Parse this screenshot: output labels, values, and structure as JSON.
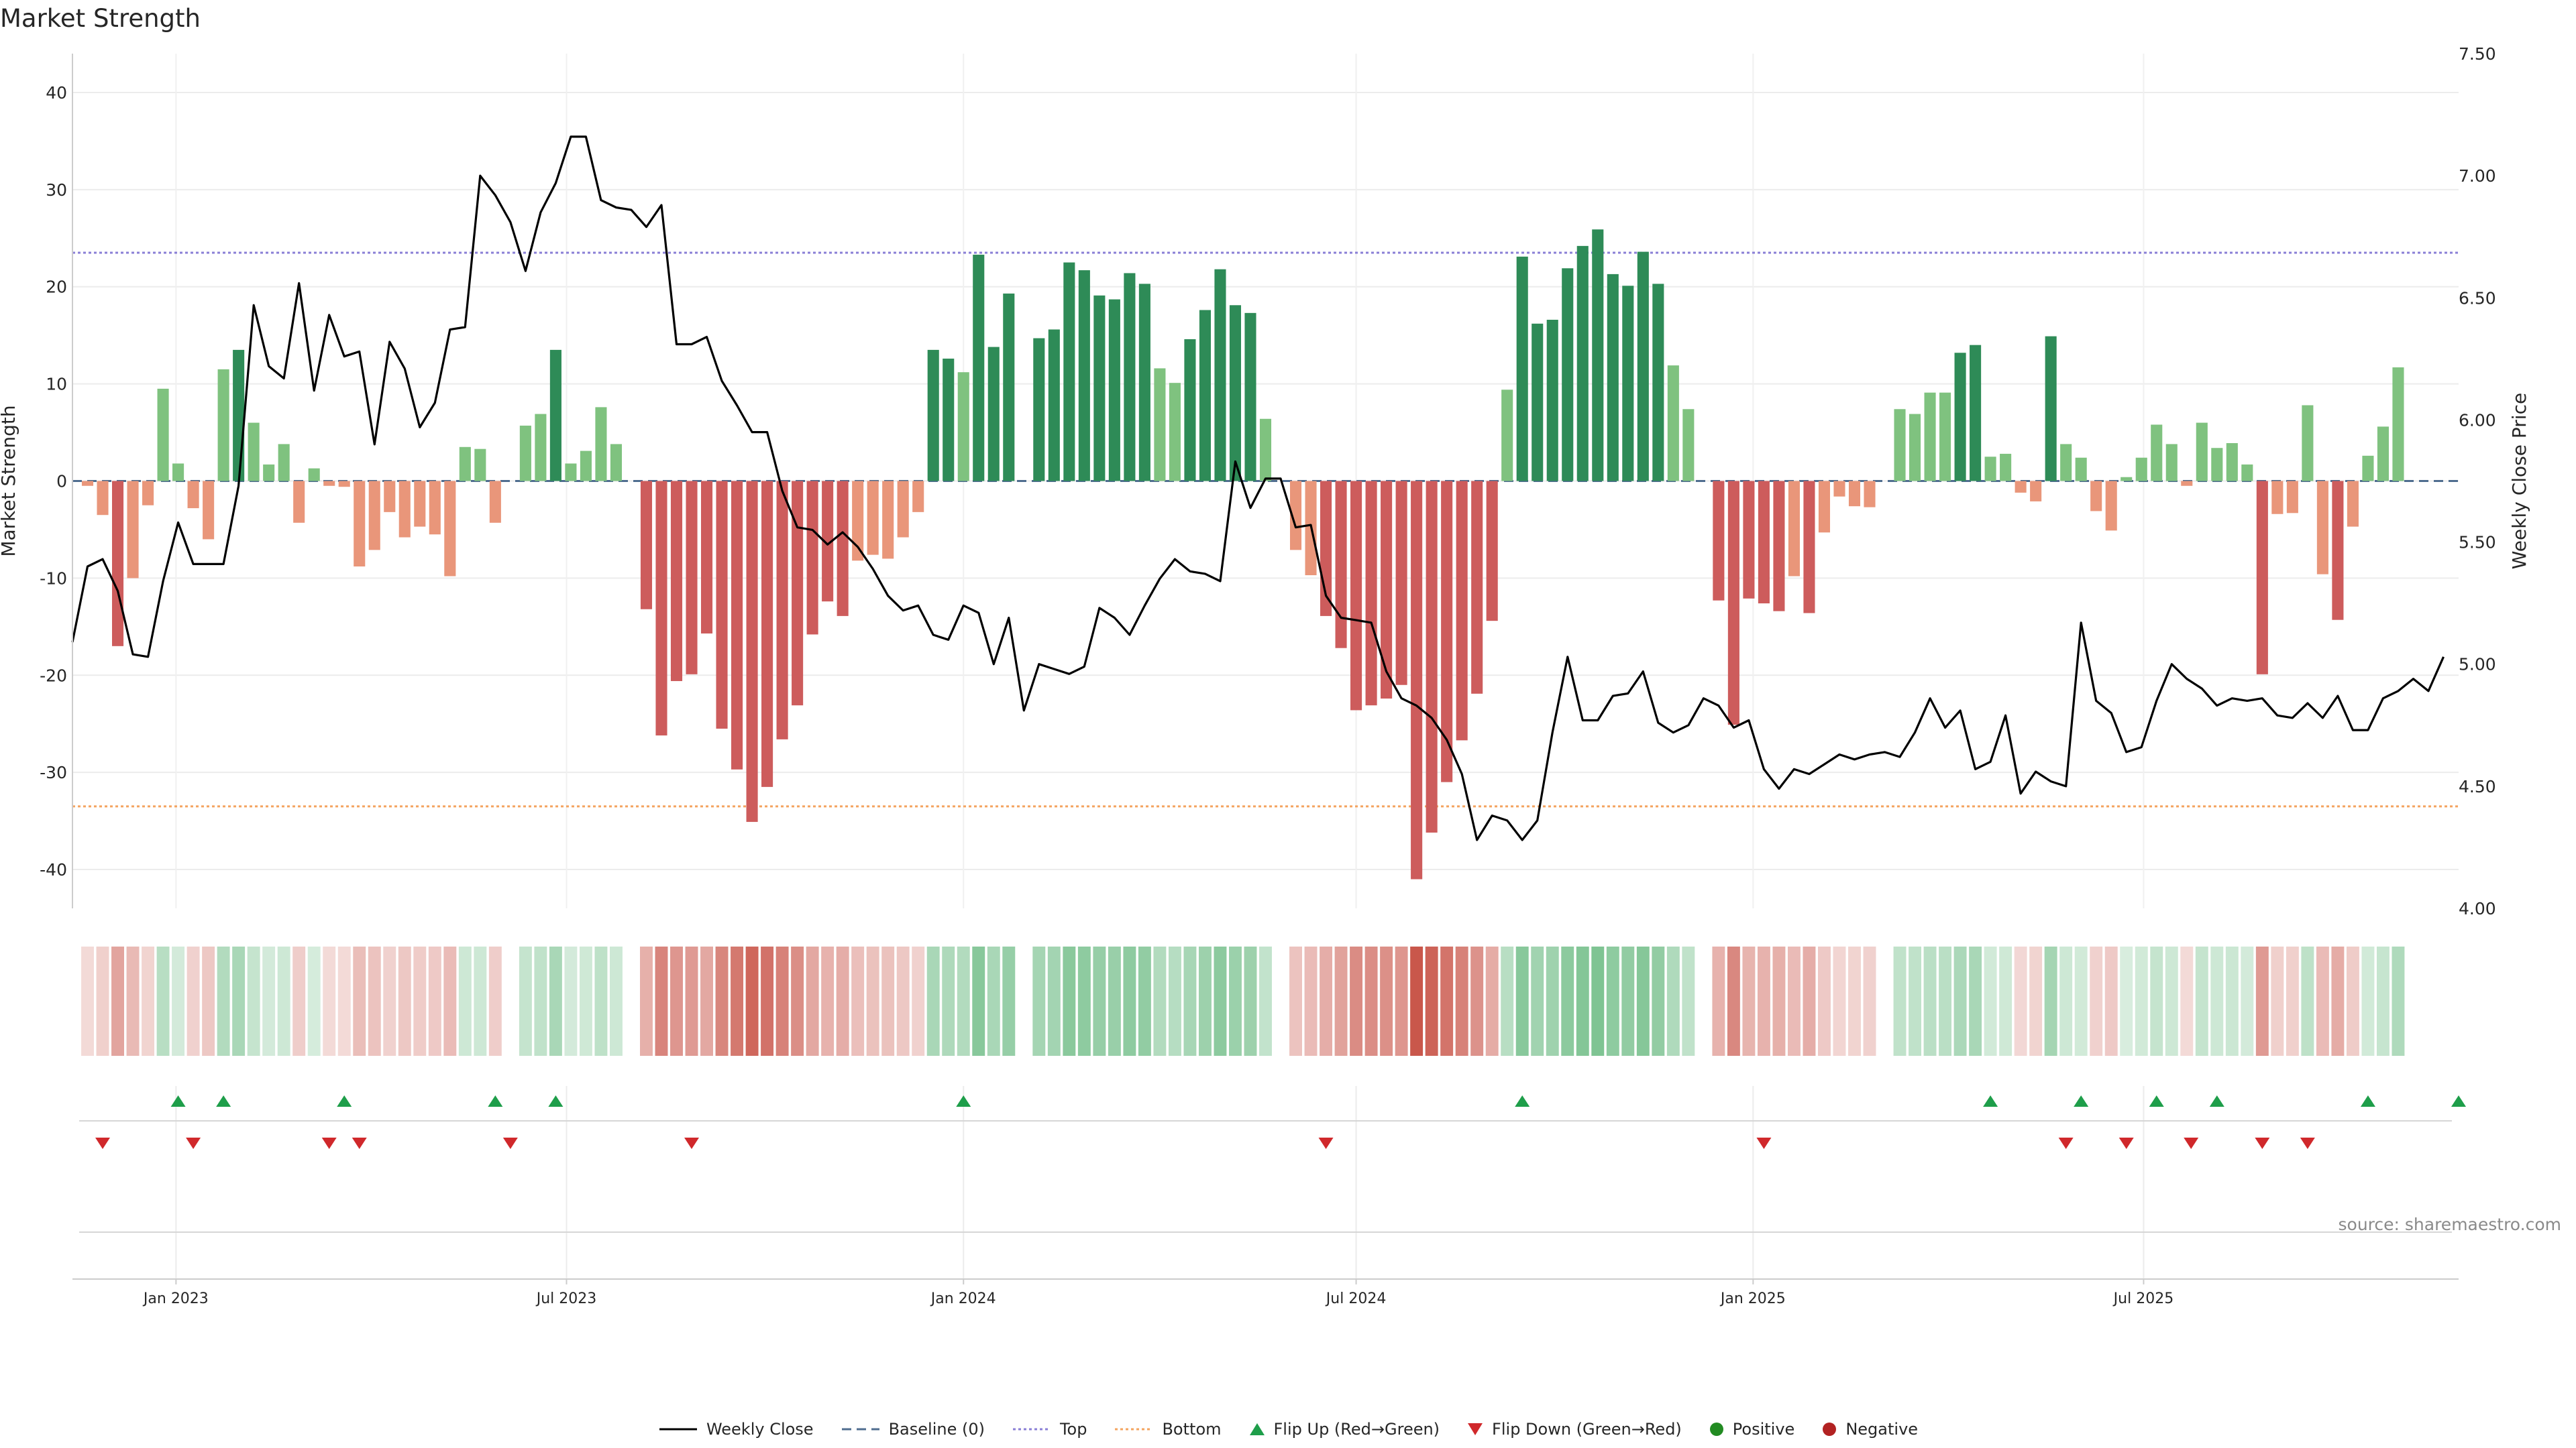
{
  "page": {
    "title": "Market Strength",
    "source": "source: sharemaestro.com"
  },
  "legend": [
    {
      "key": "close",
      "label": "Weekly Close"
    },
    {
      "key": "baseline",
      "label": "Baseline (0)"
    },
    {
      "key": "top",
      "label": "Top"
    },
    {
      "key": "bottom",
      "label": "Bottom"
    },
    {
      "key": "flip_up",
      "label": "Flip Up (Red→Green)"
    },
    {
      "key": "flip_down",
      "label": "Flip Down (Green→Red)"
    },
    {
      "key": "positive",
      "label": "Positive"
    },
    {
      "key": "negative",
      "label": "Negative"
    }
  ],
  "colors": {
    "green_dark": "#2e8b57",
    "green_light": "#7fc27f",
    "red_dark": "#cd5c5c",
    "red_light": "#e9967a",
    "close_line": "#000000",
    "baseline": "#4f6d8f",
    "top_line": "#8a7fd6",
    "bottom_line": "#f4a460",
    "flip_up": "#1e9e4a",
    "flip_down": "#d0282b",
    "positive_dot": "#228b22",
    "negative_dot": "#b22222",
    "strip_green": "#2e9e4f",
    "strip_red": "#c0392b"
  },
  "chart_data": {
    "type": "bar",
    "title": "Market Strength",
    "ylabel": "Market Strength",
    "y2label": "Weekly Close Price",
    "ylim": [
      -44,
      44
    ],
    "y2lim": [
      4.0,
      7.5
    ],
    "yticks": [
      -40,
      -30,
      -20,
      -10,
      0,
      10,
      20,
      30,
      40
    ],
    "y2ticks": [
      "4.00",
      "4.50",
      "5.00",
      "5.50",
      "6.00",
      "6.50",
      "7.00",
      "7.50"
    ],
    "x_range": [
      "2022-11-14",
      "2025-11-24"
    ],
    "xticks": [
      {
        "date": "2023-01-01",
        "label": "Jan 2023"
      },
      {
        "date": "2023-07-01",
        "label": "Jul 2023"
      },
      {
        "date": "2024-01-01",
        "label": "Jan 2024"
      },
      {
        "date": "2024-07-01",
        "label": "Jul 2024"
      },
      {
        "date": "2025-01-01",
        "label": "Jan 2025"
      },
      {
        "date": "2025-07-01",
        "label": "Jul 2025"
      }
    ],
    "top_level": 23.5,
    "bottom_level": -33.5,
    "baseline": 0,
    "start_week": "2022-11-14",
    "strength": [
      0,
      -0.5,
      -3.5,
      -17,
      -10,
      -2.5,
      9.5,
      1.8,
      -2.8,
      -6,
      11.5,
      13.5,
      6,
      1.7,
      3.8,
      -4.3,
      1.3,
      -0.5,
      -0.6,
      -8.8,
      -7.1,
      -3.2,
      -5.8,
      -4.7,
      -5.5,
      -9.8,
      3.5,
      3.3,
      -4.3,
      0,
      5.7,
      6.9,
      13.5,
      1.8,
      3.1,
      7.6,
      3.8,
      0,
      -13.2,
      -26.2,
      -20.6,
      -19.9,
      -15.7,
      -25.5,
      -29.7,
      -35.1,
      -31.5,
      -26.6,
      -23.1,
      -15.8,
      -12.4,
      -13.9,
      -8.2,
      -7.6,
      -8,
      -5.8,
      -3.2,
      13.5,
      12.6,
      11.2,
      23.3,
      13.8,
      19.3,
      0,
      14.7,
      15.6,
      22.5,
      21.7,
      19.1,
      18.7,
      21.4,
      20.3,
      11.6,
      10.1,
      14.6,
      17.6,
      21.8,
      18.1,
      17.3,
      6.4,
      0,
      -7.1,
      -9.7,
      -13.9,
      -17.2,
      -23.6,
      -23.1,
      -22.4,
      -21,
      -41,
      -36.2,
      -31,
      -26.7,
      -21.9,
      -14.4,
      9.4,
      23.1,
      16.2,
      16.6,
      21.9,
      24.2,
      25.9,
      21.3,
      20.1,
      23.6,
      20.3,
      11.9,
      7.4,
      0,
      -12.3,
      -25.1,
      -12.1,
      -12.6,
      -13.4,
      -9.8,
      -13.6,
      -5.3,
      -1.6,
      -2.6,
      -2.7,
      0,
      7.4,
      6.9,
      9.1,
      9.1,
      13.2,
      14,
      2.5,
      2.8,
      -1.2,
      -2.1,
      14.9,
      3.8,
      2.4,
      -3.1,
      -5.1,
      0.4,
      2.4,
      5.8,
      3.8,
      -0.5,
      6,
      3.4,
      3.9,
      1.7,
      -19.9,
      -3.4,
      -3.3,
      7.8,
      -9.6,
      -14.3,
      -4.7,
      2.6,
      5.6,
      11.7
    ],
    "close": [
      5.09,
      5.4,
      5.43,
      5.3,
      5.04,
      5.03,
      5.34,
      5.58,
      5.41,
      5.41,
      5.41,
      5.73,
      6.47,
      6.22,
      6.17,
      6.56,
      6.12,
      6.43,
      6.26,
      6.28,
      5.9,
      6.32,
      6.21,
      5.97,
      6.07,
      6.37,
      6.38,
      7.0,
      6.92,
      6.81,
      6.61,
      6.85,
      6.97,
      7.16,
      7.16,
      6.9,
      6.87,
      6.86,
      6.79,
      6.88,
      6.31,
      6.31,
      6.34,
      6.16,
      6.06,
      5.95,
      5.95,
      5.71,
      5.56,
      5.55,
      5.49,
      5.54,
      5.48,
      5.39,
      5.28,
      5.22,
      5.24,
      5.12,
      5.1,
      5.24,
      5.21,
      5.0,
      5.19,
      4.81,
      5.0,
      4.98,
      4.96,
      4.99,
      5.23,
      5.19,
      5.12,
      5.24,
      5.35,
      5.43,
      5.38,
      5.37,
      5.34,
      5.83,
      5.64,
      5.76,
      5.76,
      5.56,
      5.57,
      5.28,
      5.19,
      5.18,
      5.17,
      4.97,
      4.86,
      4.83,
      4.78,
      4.69,
      4.55,
      4.28,
      4.38,
      4.36,
      4.28,
      4.36,
      4.72,
      5.03,
      4.77,
      4.77,
      4.87,
      4.88,
      4.97,
      4.76,
      4.72,
      4.75,
      4.86,
      4.83,
      4.74,
      4.77,
      4.57,
      4.49,
      4.57,
      4.55,
      4.59,
      4.63,
      4.61,
      4.63,
      4.64,
      4.62,
      4.72,
      4.86,
      4.74,
      4.81,
      4.57,
      4.6,
      4.79,
      4.47,
      4.56,
      4.52,
      4.5,
      5.17,
      4.85,
      4.8,
      4.64,
      4.66,
      4.85,
      5.0,
      4.94,
      4.9,
      4.83,
      4.86,
      4.85,
      4.86,
      4.79,
      4.78,
      4.84,
      4.78,
      4.87,
      4.73,
      4.73,
      4.86,
      4.89,
      4.94,
      4.89,
      5.03
    ],
    "flip_up_dates": [
      "2023-01-02",
      "2023-01-23",
      "2023-03-20",
      "2023-05-29",
      "2023-06-26",
      "2024-01-01",
      "2024-09-16",
      "2025-04-21",
      "2025-06-02",
      "2025-07-07",
      "2025-08-04",
      "2025-10-13",
      "2025-11-24"
    ],
    "flip_down_dates": [
      "2022-11-28",
      "2023-01-09",
      "2023-03-13",
      "2023-03-27",
      "2023-06-05",
      "2023-08-28",
      "2024-06-17",
      "2025-01-06",
      "2025-05-26",
      "2025-06-23",
      "2025-07-23",
      "2025-08-25",
      "2025-09-15"
    ]
  }
}
